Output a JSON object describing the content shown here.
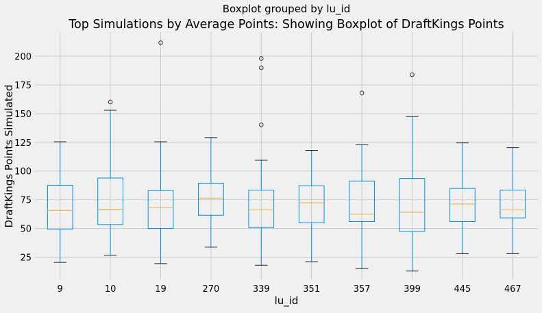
{
  "chart_data": {
    "type": "boxplot",
    "suptitle": "Boxplot grouped by lu_id",
    "title": "Top Simulations by Average Points: Showing Boxplot of DraftKings Points",
    "xlabel": "lu_id",
    "ylabel": "DraftKings Points Simulated",
    "ylim": [
      5.6,
      220.9
    ],
    "yticks": [
      25,
      50,
      75,
      100,
      125,
      150,
      175,
      200
    ],
    "grid": true,
    "colors": {
      "box": "#008fd5",
      "median": "#e5ae38",
      "background": "#f0f0f0",
      "grid": "#cbcbcb",
      "flier": "#333333"
    },
    "categories": [
      "9",
      "10",
      "19",
      "270",
      "339",
      "351",
      "357",
      "399",
      "445",
      "467"
    ],
    "boxes": [
      {
        "whislo": 20.4,
        "q1": 49.4,
        "med": 65.7,
        "q3": 87.6,
        "whishi": 125.5,
        "fliers": []
      },
      {
        "whislo": 26.8,
        "q1": 53.4,
        "med": 66.7,
        "q3": 93.9,
        "whishi": 152.9,
        "fliers": [
          160.1
        ]
      },
      {
        "whislo": 19.4,
        "q1": 50.0,
        "med": 68.1,
        "q3": 83.0,
        "whishi": 125.5,
        "fliers": [
          211.7
        ]
      },
      {
        "whislo": 33.7,
        "q1": 61.5,
        "med": 76.4,
        "q3": 89.4,
        "whishi": 129.1,
        "fliers": []
      },
      {
        "whislo": 18.0,
        "q1": 50.8,
        "med": 66.1,
        "q3": 83.4,
        "whishi": 109.4,
        "fliers": [
          140.2,
          189.9,
          198.0
        ]
      },
      {
        "whislo": 21.0,
        "q1": 55.0,
        "med": 72.3,
        "q3": 87.2,
        "whishi": 118.0,
        "fliers": []
      },
      {
        "whislo": 14.9,
        "q1": 56.0,
        "med": 62.5,
        "q3": 91.3,
        "whishi": 122.9,
        "fliers": [
          168.0
        ]
      },
      {
        "whislo": 12.9,
        "q1": 47.4,
        "med": 64.1,
        "q3": 93.5,
        "whishi": 147.4,
        "fliers": [
          183.9
        ]
      },
      {
        "whislo": 28.0,
        "q1": 56.0,
        "med": 71.3,
        "q3": 84.8,
        "whishi": 124.5,
        "fliers": []
      },
      {
        "whislo": 28.0,
        "q1": 59.2,
        "med": 66.1,
        "q3": 83.4,
        "whishi": 120.3,
        "fliers": []
      }
    ]
  }
}
